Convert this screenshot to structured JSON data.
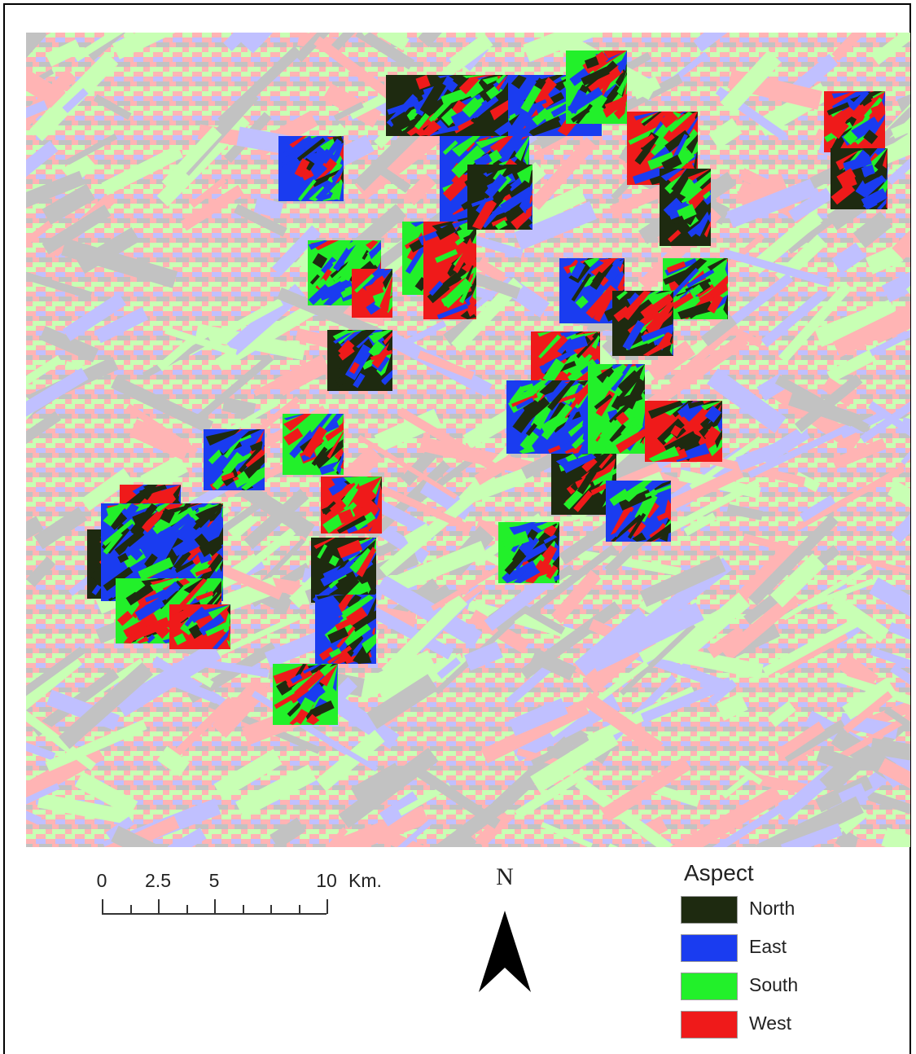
{
  "legend": {
    "title": "Aspect",
    "items": [
      {
        "label": "North",
        "color": "#1e2a10"
      },
      {
        "label": "East",
        "color": "#1a3cf0"
      },
      {
        "label": "South",
        "color": "#22f02a"
      },
      {
        "label": "West",
        "color": "#ef1a1a"
      }
    ]
  },
  "background_colors": {
    "North": "#c2c2c2",
    "East": "#c0c0ff",
    "South": "#c8ffb4",
    "West": "#ffb4b4"
  },
  "scale_bar": {
    "ticks": [
      "0",
      "2.5",
      "5",
      "10"
    ],
    "unit": "Km."
  },
  "north_arrow": {
    "label": "N"
  }
}
